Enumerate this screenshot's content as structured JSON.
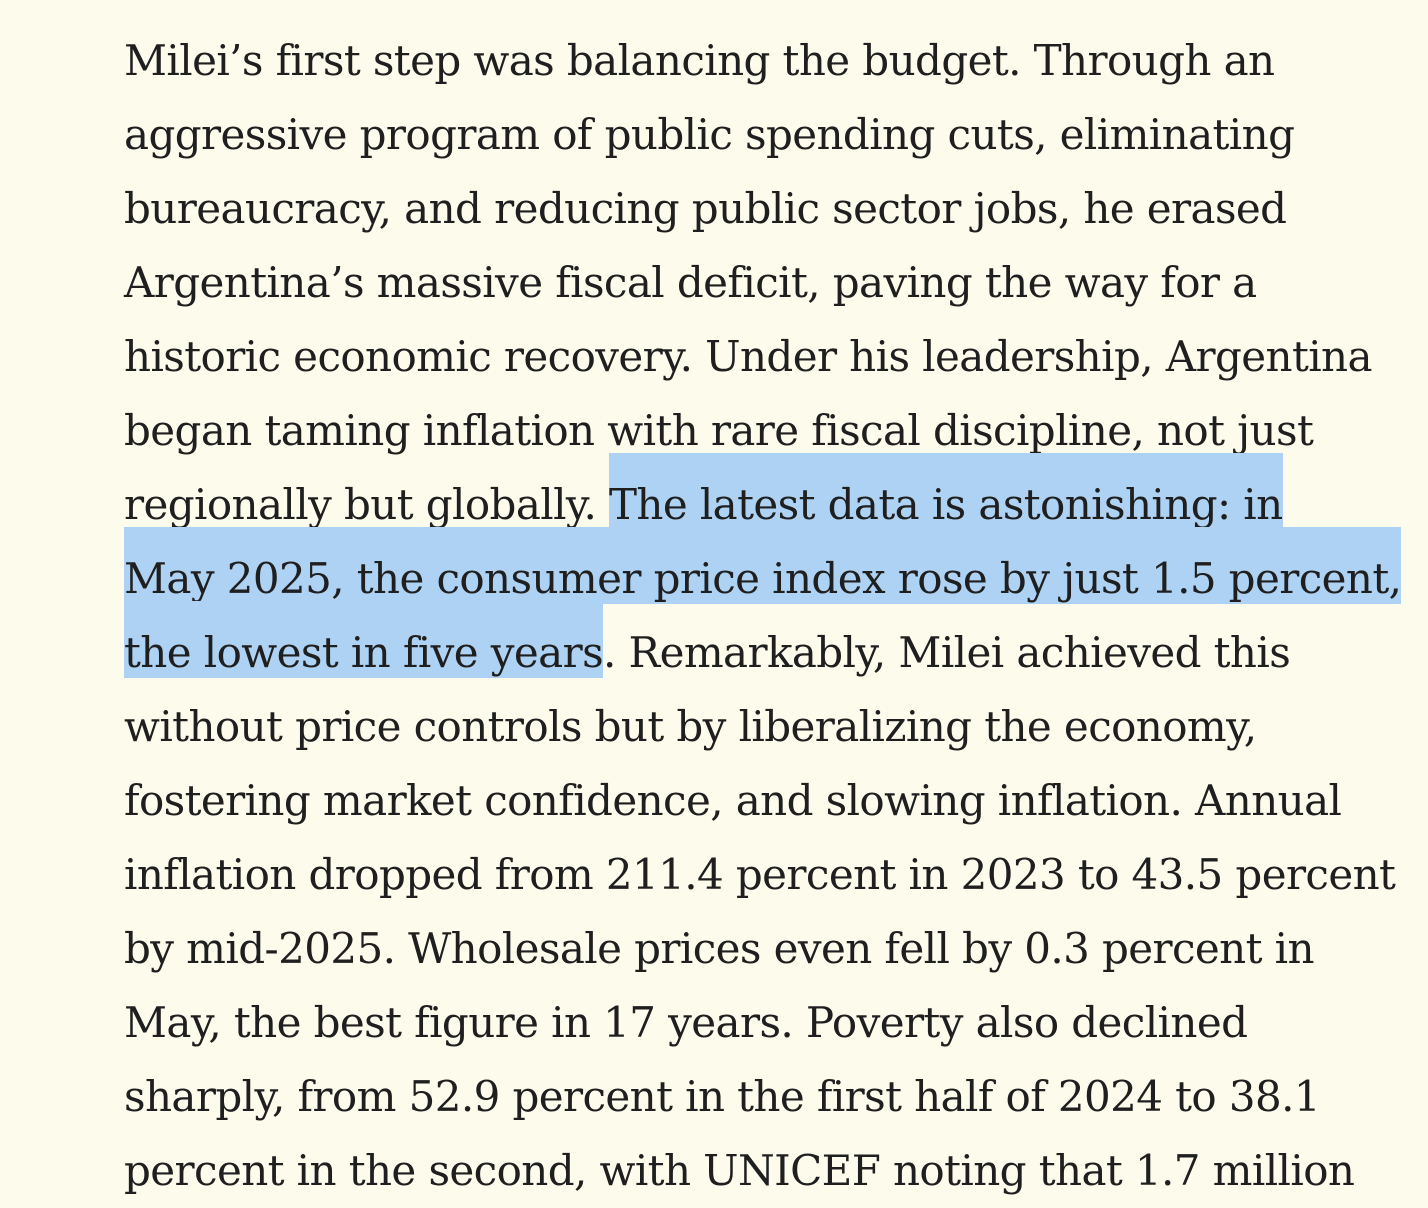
{
  "page": {
    "background_color": "#FCFBEC",
    "text_color": "#1F1F1F",
    "highlight_color": "#ADD2F3"
  },
  "article": {
    "highlighted_passage": "The latest data is astonishing: in May 2025, the consumer price index rose by just 1.5 percent, the lowest in five years",
    "lines": [
      {
        "segments": [
          {
            "text": "Milei’s first step was balancing the budget. Through an",
            "highlighted": false
          }
        ]
      },
      {
        "segments": [
          {
            "text": "aggressive program of public spending cuts, eliminating",
            "highlighted": false
          }
        ]
      },
      {
        "segments": [
          {
            "text": "bureaucracy, and reducing public sector jobs, he erased",
            "highlighted": false
          }
        ]
      },
      {
        "segments": [
          {
            "text": "Argentina’s massive fiscal deficit, paving the way for a",
            "highlighted": false
          }
        ]
      },
      {
        "segments": [
          {
            "text": "historic economic recovery. Under his leadership, Argentina",
            "highlighted": false
          }
        ]
      },
      {
        "segments": [
          {
            "text": "began taming inflation with rare fiscal discipline, not just",
            "highlighted": false
          }
        ]
      },
      {
        "segments": [
          {
            "text": "regionally but globally. ",
            "highlighted": false
          },
          {
            "text": "The latest data is astonishing: in",
            "highlighted": true
          }
        ]
      },
      {
        "segments": [
          {
            "text": "May 2025, the consumer price index rose by just 1.5 percent,",
            "highlighted": true
          }
        ]
      },
      {
        "segments": [
          {
            "text": "the lowest in five years",
            "highlighted": true
          },
          {
            "text": ". Remarkably, Milei achieved this",
            "highlighted": false
          }
        ]
      },
      {
        "segments": [
          {
            "text": "without price controls but by liberalizing the economy,",
            "highlighted": false
          }
        ]
      },
      {
        "segments": [
          {
            "text": "fostering market confidence, and slowing inflation. Annual",
            "highlighted": false
          }
        ]
      },
      {
        "segments": [
          {
            "text": "inflation dropped from 211.4 percent in 2023 to 43.5 percent",
            "highlighted": false
          }
        ]
      },
      {
        "segments": [
          {
            "text": "by mid-2025. Wholesale prices even fell by 0.3 percent in",
            "highlighted": false
          }
        ]
      },
      {
        "segments": [
          {
            "text": "May, the best figure in 17 years. Poverty also declined",
            "highlighted": false
          }
        ]
      },
      {
        "segments": [
          {
            "text": "sharply, from 52.9 percent in the first half of 2024 to 38.1",
            "highlighted": false
          }
        ]
      },
      {
        "segments": [
          {
            "text": "percent in the second, with UNICEF noting that 1.7 million",
            "highlighted": false
          }
        ]
      }
    ]
  }
}
